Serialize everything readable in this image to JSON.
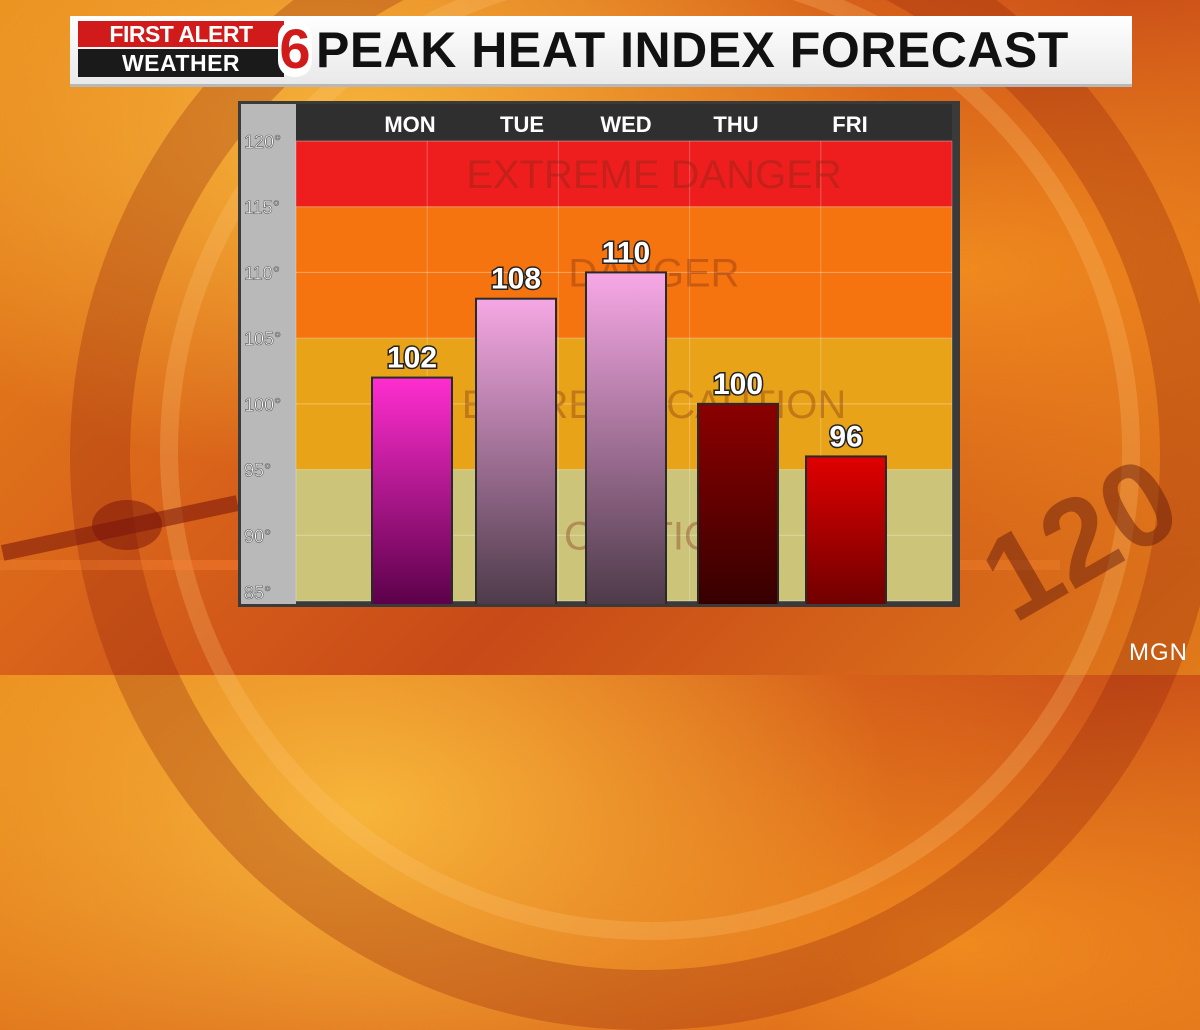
{
  "header": {
    "logo_top": "FIRST ALERT",
    "logo_bottom": "WEATHER",
    "logo_number": "6",
    "title": "PEAK HEAT INDEX FORECAST"
  },
  "watermark": "MGN",
  "background_text": "120",
  "chart_data": {
    "type": "bar",
    "categories": [
      "MON",
      "TUE",
      "WED",
      "THU",
      "FRI"
    ],
    "values": [
      102,
      108,
      110,
      100,
      96
    ],
    "data_labels": [
      "102",
      "108",
      "110",
      "100",
      "96"
    ],
    "ylim": [
      85,
      120
    ],
    "y_ticks": [
      85,
      90,
      95,
      100,
      105,
      110,
      115,
      120
    ],
    "y_tick_labels": [
      "85°",
      "90°",
      "95°",
      "100°",
      "105°",
      "110°",
      "115°",
      "120°"
    ],
    "bar_colors": [
      [
        "#ff2ed0",
        "#5a0048"
      ],
      [
        "#f5a8e4",
        "#4c3a48"
      ],
      [
        "#f7a8e6",
        "#4c3a48"
      ],
      [
        "#8c0000",
        "#350000"
      ],
      [
        "#e00000",
        "#6e0000"
      ]
    ],
    "zones": [
      {
        "label": "EXTREME DANGER",
        "from": 115,
        "to": 120,
        "color": "#ef1e1e"
      },
      {
        "label": "DANGER",
        "from": 105,
        "to": 115,
        "color": "#f6740f"
      },
      {
        "label": "EXTREME CAUTION",
        "from": 95,
        "to": 105,
        "color": "#e9a318"
      },
      {
        "label": "CAUTION",
        "from": 85,
        "to": 95,
        "color": "#ccc478"
      }
    ],
    "grid": true
  }
}
